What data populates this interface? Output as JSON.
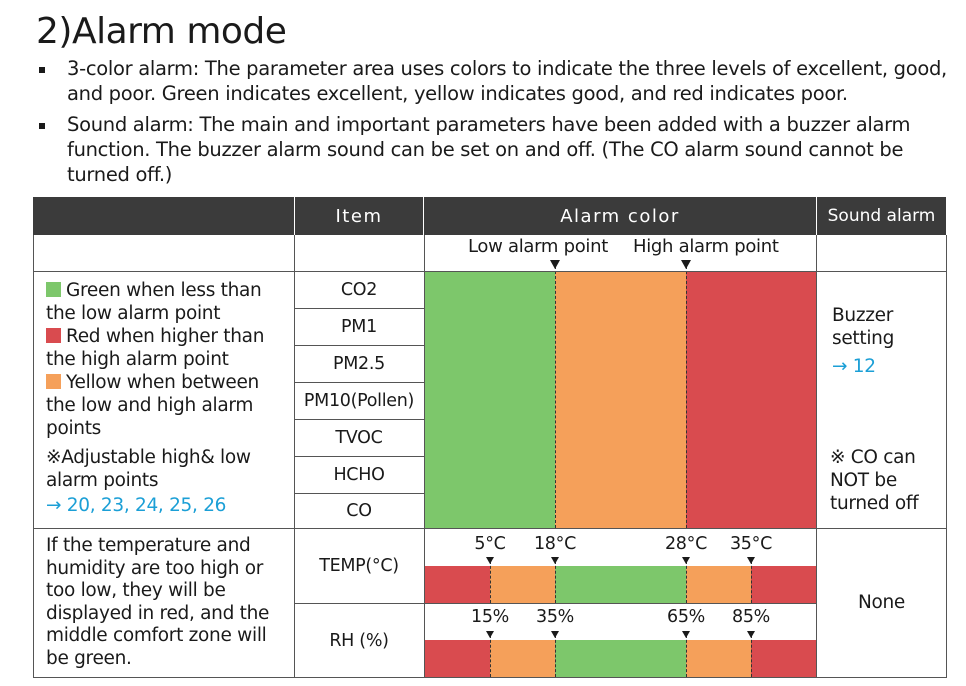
{
  "heading": {
    "number": "2)",
    "title": "Alarm mode"
  },
  "bullets": [
    "3-color alarm: The parameter area uses colors to indicate the three levels of excellent, good, and poor. Green indicates excellent, yellow indicates good, and red indicates poor.",
    "Sound alarm: The main and important parameters have been added with a buzzer alarm function. The buzzer alarm sound can be set on and off. (The CO alarm sound cannot be turned off.)"
  ],
  "table": {
    "headers": {
      "item": "Item",
      "alarm_color": "Alarm color",
      "sound_alarm": "Sound alarm"
    },
    "alarm_points": {
      "low": "Low alarm point",
      "high": "High alarm point"
    },
    "legend": {
      "green": "Green when less than the low alarm point",
      "red": "Red when higher than the high alarm point",
      "yellow": "Yellow when between the low and high alarm points",
      "note": "※Adjustable high& low alarm points",
      "note_link": "→ 20, 23, 24, 25, 26"
    },
    "items": [
      "CO2",
      "PM1",
      "PM2.5",
      "PM10(Pollen)",
      "TVOC",
      "HCHO",
      "CO"
    ],
    "sound": {
      "buzzer": "Buzzer setting",
      "buzzer_link": "→ 12",
      "co_note": "※ CO can NOT be turned off",
      "none": "None"
    },
    "comfort_text": "If the temperature and humidity are too high or too low, they will be displayed in red, and the middle comfort zone will be green.",
    "temp": {
      "label": "TEMP(°C)",
      "ticks": [
        "5°C",
        "18°C",
        "28°C",
        "35°C"
      ]
    },
    "rh": {
      "label": "RH (%)",
      "ticks": [
        "15%",
        "35%",
        "65%",
        "85%"
      ]
    }
  },
  "colors": {
    "green": "#7dc76b",
    "yellow": "#f5a05a",
    "red": "#d94b4f",
    "header_bg": "#3b3b3b",
    "link": "#1b9fd6"
  }
}
